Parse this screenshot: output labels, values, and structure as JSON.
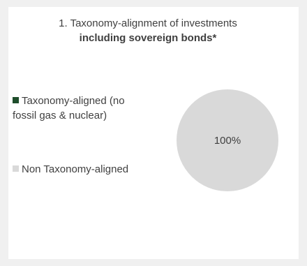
{
  "chart_data": {
    "type": "pie",
    "title_line1": "1. Taxonomy-alignment of investments",
    "title_line2": "including sovereign bonds*",
    "legend": [
      {
        "label_line1": "Taxonomy-aligned (no",
        "label_line2": "fossil gas & nuclear)",
        "color": "#1e4d2b"
      },
      {
        "label_line1": "Non Taxonomy-aligned",
        "label_line2": "",
        "color": "#d9d9d9"
      }
    ],
    "slices": [
      {
        "label": "Taxonomy-aligned (no fossil gas & nuclear)",
        "value": 0,
        "color": "#1e4d2b"
      },
      {
        "label": "Non Taxonomy-aligned",
        "value": 100,
        "color": "#d9d9d9"
      }
    ],
    "data_labels": [
      "",
      "100%"
    ],
    "legend_position": "left"
  }
}
